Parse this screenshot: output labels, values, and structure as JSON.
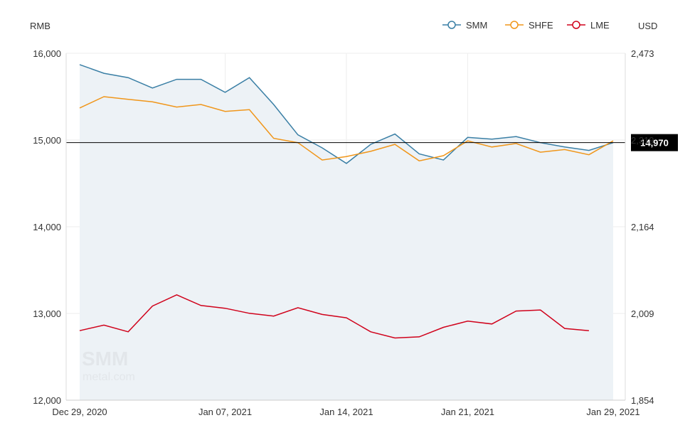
{
  "chart_data": {
    "type": "line",
    "y_left_unit": "RMB",
    "y_right_unit": "USD",
    "x_ticks": [
      "Dec 29, 2020",
      "Jan 07, 2021",
      "Jan 14, 2021",
      "Jan 21, 2021",
      "Jan 29, 2021"
    ],
    "y_left_ticks": [
      "12,000",
      "13,000",
      "14,000",
      "15,000",
      "16,000"
    ],
    "y_right_ticks": [
      "1,854",
      "2,009",
      "2,164",
      "2,319",
      "2,473"
    ],
    "ylim_left": [
      12000,
      16000
    ],
    "ylim_right": [
      1854,
      2473
    ],
    "x": [
      "2020-12-29",
      "2020-12-30",
      "2020-12-31",
      "2021-01-04",
      "2021-01-05",
      "2021-01-06",
      "2021-01-07",
      "2021-01-08",
      "2021-01-11",
      "2021-01-12",
      "2021-01-13",
      "2021-01-14",
      "2021-01-15",
      "2021-01-18",
      "2021-01-19",
      "2021-01-20",
      "2021-01-21",
      "2021-01-22",
      "2021-01-25",
      "2021-01-26",
      "2021-01-27",
      "2021-01-28",
      "2021-01-29"
    ],
    "series": [
      {
        "name": "SMM",
        "color": "#3a7fa5",
        "axis": "left",
        "values": [
          15870,
          15770,
          15720,
          15600,
          15700,
          15700,
          15550,
          15720,
          15410,
          15060,
          14910,
          14730,
          14950,
          15070,
          14840,
          14770,
          15030,
          15010,
          15040,
          14970,
          14920,
          14880,
          14970
        ]
      },
      {
        "name": "SHFE",
        "color": "#f0961a",
        "axis": "left",
        "values": [
          15370,
          15500,
          15470,
          15440,
          15380,
          15410,
          15330,
          15350,
          15020,
          14970,
          14770,
          14810,
          14870,
          14950,
          14760,
          14820,
          14990,
          14920,
          14960,
          14860,
          14890,
          14830,
          14990
        ]
      },
      {
        "name": "LME",
        "color": "#d0021b",
        "axis": "right",
        "values": [
          1978,
          1988,
          1976,
          2022,
          2042,
          2023,
          2018,
          2009,
          2004,
          2019,
          2007,
          2001,
          1976,
          1965,
          1967,
          1984,
          1995,
          1990,
          2013,
          2015,
          1982,
          1978,
          null
        ]
      }
    ],
    "marker_value_label": "14,970",
    "marker_value": 14970,
    "grid": true,
    "legend_position": "top-right"
  }
}
